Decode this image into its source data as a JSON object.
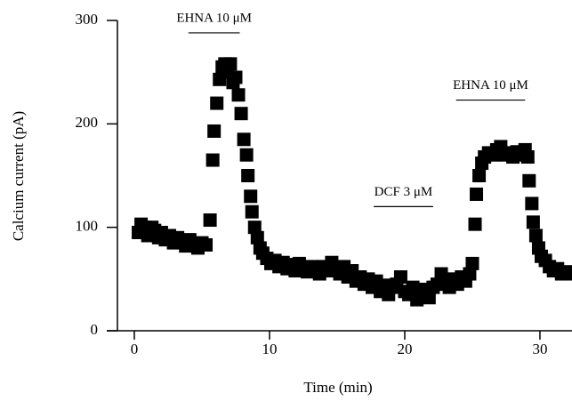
{
  "chart_data": {
    "type": "scatter",
    "x_label": "Time (min)",
    "y_label": "Calcium current (pA)",
    "xlim": [
      -1.25,
      32.37
    ],
    "ylim": [
      0,
      300
    ],
    "xticks": [
      0,
      10,
      20,
      30
    ],
    "yticks": [
      0,
      100,
      200,
      300
    ],
    "color": "#000000",
    "annotations": [
      {
        "text": "EHNA 10 μM",
        "x_start": 4.0,
        "x_end": 7.8,
        "y": 288
      },
      {
        "text": "DCF 3 μM",
        "x_start": 17.7,
        "x_end": 22.1,
        "y": 120
      },
      {
        "text": "EHNA 10 μM",
        "x_start": 23.8,
        "x_end": 28.9,
        "y": 223
      }
    ],
    "x": [
      0.3,
      0.5,
      0.8,
      1.0,
      1.3,
      1.5,
      1.8,
      2.0,
      2.3,
      2.6,
      2.9,
      3.2,
      3.5,
      3.8,
      4.1,
      4.4,
      4.7,
      5.0,
      5.3,
      5.6,
      5.8,
      5.9,
      6.1,
      6.3,
      6.5,
      6.7,
      6.9,
      7.1,
      7.3,
      7.5,
      7.7,
      7.9,
      8.1,
      8.3,
      8.4,
      8.6,
      8.7,
      8.9,
      9.1,
      9.3,
      9.5,
      9.8,
      10.1,
      10.4,
      10.7,
      11.0,
      11.3,
      11.6,
      11.9,
      12.2,
      12.5,
      12.8,
      13.1,
      13.4,
      13.7,
      14.0,
      14.3,
      14.6,
      14.9,
      15.2,
      15.5,
      15.8,
      16.1,
      16.4,
      16.7,
      17.0,
      17.3,
      17.6,
      17.9,
      18.2,
      18.5,
      18.8,
      19.1,
      19.4,
      19.7,
      20.0,
      20.3,
      20.6,
      20.9,
      21.2,
      21.5,
      21.8,
      22.1,
      22.4,
      22.7,
      23.0,
      23.3,
      23.6,
      23.9,
      24.2,
      24.5,
      24.8,
      25.0,
      25.2,
      25.3,
      25.5,
      25.7,
      25.9,
      26.2,
      26.5,
      26.8,
      27.1,
      27.4,
      27.7,
      28.0,
      28.3,
      28.6,
      28.9,
      29.1,
      29.2,
      29.4,
      29.5,
      29.7,
      29.9,
      30.1,
      30.4,
      30.7,
      31.0,
      31.3,
      31.6,
      31.9,
      32.1
    ],
    "values": [
      95,
      103,
      100,
      92,
      100,
      97,
      90,
      95,
      88,
      92,
      85,
      90,
      86,
      82,
      88,
      84,
      80,
      85,
      83,
      107,
      165,
      193,
      220,
      243,
      255,
      258,
      250,
      258,
      240,
      245,
      228,
      210,
      185,
      170,
      150,
      130,
      115,
      100,
      90,
      80,
      75,
      70,
      65,
      68,
      62,
      66,
      60,
      64,
      58,
      65,
      60,
      57,
      62,
      60,
      55,
      62,
      58,
      66,
      60,
      55,
      62,
      52,
      58,
      48,
      52,
      45,
      50,
      42,
      48,
      38,
      44,
      35,
      42,
      45,
      52,
      38,
      35,
      42,
      30,
      38,
      40,
      32,
      42,
      45,
      55,
      48,
      42,
      50,
      45,
      52,
      48,
      55,
      65,
      103,
      132,
      150,
      162,
      168,
      172,
      170,
      175,
      178,
      170,
      172,
      168,
      173,
      170,
      175,
      168,
      145,
      123,
      105,
      92,
      80,
      72,
      68,
      62,
      58,
      60,
      55,
      57,
      55
    ]
  }
}
